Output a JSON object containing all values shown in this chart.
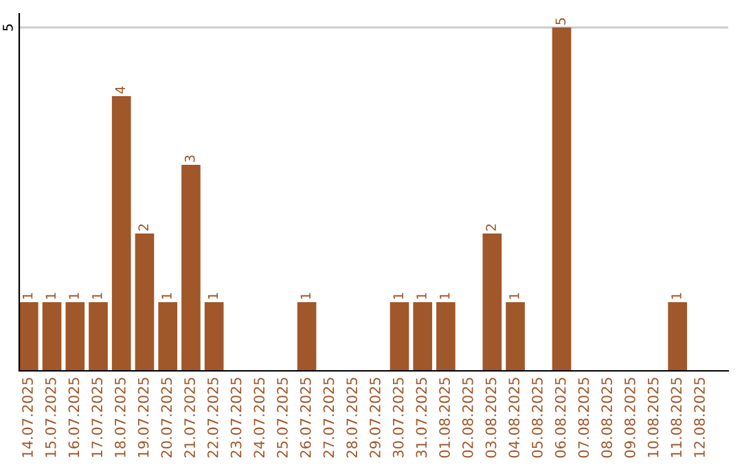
{
  "chart_data": {
    "type": "bar",
    "categories": [
      "14.07.2025",
      "15.07.2025",
      "16.07.2025",
      "17.07.2025",
      "18.07.2025",
      "19.07.2025",
      "20.07.2025",
      "21.07.2025",
      "22.07.2025",
      "23.07.2025",
      "24.07.2025",
      "25.07.2025",
      "26.07.2025",
      "27.07.2025",
      "28.07.2025",
      "29.07.2025",
      "30.07.2025",
      "31.07.2025",
      "01.08.2025",
      "02.08.2025",
      "03.08.2025",
      "04.08.2025",
      "05.08.2025",
      "06.08.2025",
      "07.08.2025",
      "08.08.2025",
      "09.08.2025",
      "10.08.2025",
      "11.08.2025",
      "12.08.2025"
    ],
    "values": [
      1,
      1,
      1,
      1,
      4,
      2,
      1,
      3,
      1,
      0,
      0,
      0,
      1,
      0,
      0,
      0,
      1,
      1,
      1,
      0,
      2,
      1,
      0,
      5,
      0,
      0,
      0,
      0,
      1,
      0
    ],
    "value_labels": [
      "1",
      "1",
      "1",
      "1",
      "4",
      "2",
      "1",
      "3",
      "1",
      null,
      null,
      null,
      "1",
      null,
      null,
      null,
      "1",
      "1",
      "1",
      null,
      "2",
      "1",
      null,
      "5",
      null,
      null,
      null,
      null,
      "1",
      null
    ],
    "color": "#a0572a",
    "ylim": [
      0,
      5.2
    ],
    "yticks": [
      5
    ],
    "grid": "y",
    "legend": false
  }
}
